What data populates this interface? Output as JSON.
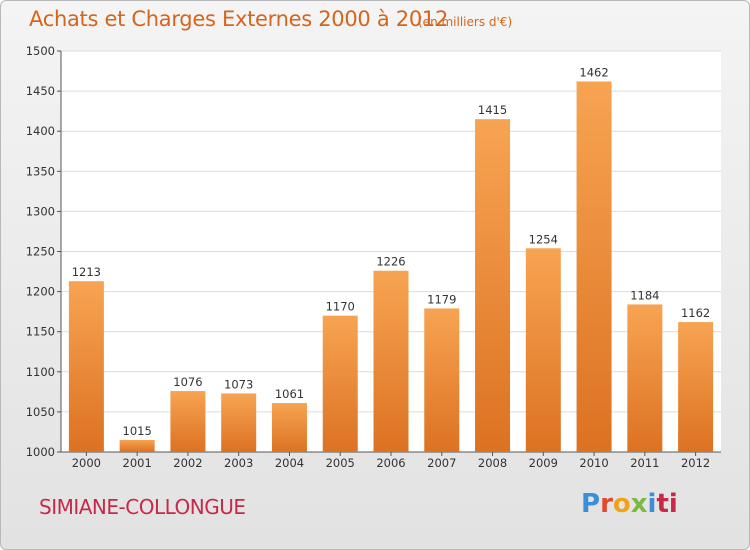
{
  "chart_data": {
    "type": "bar",
    "title": "Achats et Charges Externes 2000 à 2012",
    "subtitle": "(en milliers d'€)",
    "categories": [
      "2000",
      "2001",
      "2002",
      "2003",
      "2004",
      "2005",
      "2006",
      "2007",
      "2008",
      "2009",
      "2010",
      "2011",
      "2012"
    ],
    "values": [
      1213,
      1015,
      1076,
      1073,
      1061,
      1170,
      1226,
      1179,
      1415,
      1254,
      1462,
      1184,
      1162
    ],
    "ylim": [
      1000,
      1500
    ],
    "yticks": [
      1000,
      1050,
      1100,
      1150,
      1200,
      1250,
      1300,
      1350,
      1400,
      1450,
      1500
    ],
    "grid": true,
    "xlabel": "",
    "ylabel": "",
    "bar_color_top": "#f7a452",
    "bar_color_bottom": "#dc7222"
  },
  "footer": {
    "commune": "SIMIANE-COLLONGUE",
    "logo": [
      "P",
      "r",
      "o",
      "x",
      "i",
      "ti"
    ]
  }
}
